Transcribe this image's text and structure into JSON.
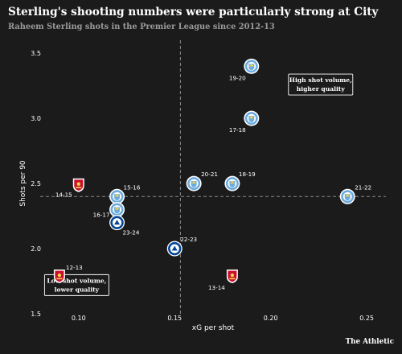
{
  "title": "Sterling's shooting numbers were particularly strong at City",
  "subtitle": "Raheem Sterling shots in the Premier League since 2012-13",
  "brand": "The Athletic",
  "colors": {
    "background": "#1b1b1b",
    "text": "#ffffff",
    "muted": "#9a9a9a",
    "liverpool": "#c8102e",
    "man_city": "#6cabdd",
    "chelsea": "#034694"
  },
  "chart_data": {
    "type": "scatter",
    "title": "Sterling's shooting numbers were particularly strong at City",
    "subtitle": "Raheem Sterling shots in the Premier League since 2012-13",
    "xlabel": "xG per shot",
    "ylabel": "Shots per 90",
    "xlim": [
      0.08,
      0.26
    ],
    "ylim": [
      1.5,
      3.6
    ],
    "xticks": [
      "0.10",
      "0.15",
      "0.20",
      "0.25"
    ],
    "yticks": [
      "1.5",
      "2.0",
      "2.5",
      "3.0",
      "3.5"
    ],
    "grid": false,
    "reference_lines": {
      "x": 0.153,
      "y": 2.4
    },
    "annotations": [
      {
        "text": [
          "High shot volume,",
          "higher quality"
        ],
        "x": 0.226,
        "y": 3.26
      },
      {
        "text": [
          "Low shot volume,",
          "lower quality"
        ],
        "x": 0.099,
        "y": 1.72
      }
    ],
    "points": [
      {
        "season": "12-13",
        "club": "liverpool",
        "x": 0.09,
        "y": 1.79
      },
      {
        "season": "13-14",
        "club": "liverpool",
        "x": 0.18,
        "y": 1.79
      },
      {
        "season": "14-15",
        "club": "liverpool",
        "x": 0.1,
        "y": 2.49
      },
      {
        "season": "15-16",
        "club": "man_city",
        "x": 0.12,
        "y": 2.4
      },
      {
        "season": "16-17",
        "club": "man_city",
        "x": 0.12,
        "y": 2.3
      },
      {
        "season": "17-18",
        "club": "man_city",
        "x": 0.19,
        "y": 3.0
      },
      {
        "season": "18-19",
        "club": "man_city",
        "x": 0.18,
        "y": 2.5
      },
      {
        "season": "19-20",
        "club": "man_city",
        "x": 0.19,
        "y": 3.4
      },
      {
        "season": "20-21",
        "club": "man_city",
        "x": 0.16,
        "y": 2.5
      },
      {
        "season": "21-22",
        "club": "man_city",
        "x": 0.24,
        "y": 2.4
      },
      {
        "season": "22-23",
        "club": "chelsea",
        "x": 0.15,
        "y": 2.0
      },
      {
        "season": "23-24",
        "club": "chelsea",
        "x": 0.12,
        "y": 2.2
      }
    ]
  }
}
